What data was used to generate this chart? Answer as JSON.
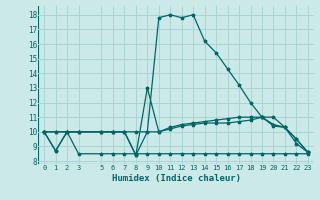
{
  "xlabel": "Humidex (Indice chaleur)",
  "background_color": "#cce9e9",
  "grid_color": "#add4d4",
  "line_color": "#006666",
  "x_ticks": [
    0,
    1,
    2,
    3,
    5,
    6,
    7,
    8,
    9,
    10,
    11,
    12,
    13,
    14,
    15,
    16,
    17,
    18,
    19,
    20,
    21,
    22,
    23
  ],
  "y_ticks": [
    8,
    9,
    10,
    11,
    12,
    13,
    14,
    15,
    16,
    17,
    18
  ],
  "ylim": [
    7.8,
    18.6
  ],
  "xlim": [
    -0.5,
    23.5
  ],
  "series": [
    {
      "x": [
        0,
        1,
        2,
        3,
        5,
        6,
        7,
        8,
        9,
        10,
        11,
        12,
        13,
        14,
        15,
        16,
        17,
        18,
        19,
        20,
        21,
        22,
        23
      ],
      "y": [
        10,
        8.7,
        10,
        10,
        10,
        10,
        10,
        8.4,
        10,
        17.8,
        18,
        17.8,
        18,
        16.2,
        15.4,
        14.3,
        13.2,
        12,
        11,
        10.4,
        10.3,
        9.5,
        8.6
      ]
    },
    {
      "x": [
        0,
        1,
        2,
        3,
        5,
        6,
        7,
        8,
        9,
        10,
        11,
        12,
        13,
        14,
        15,
        16,
        17,
        18,
        19,
        20,
        21,
        22,
        23
      ],
      "y": [
        10,
        8.7,
        10,
        10,
        10,
        10,
        10,
        8.4,
        13,
        10,
        10.2,
        10.4,
        10.5,
        10.6,
        10.6,
        10.6,
        10.7,
        10.8,
        11,
        11,
        10.3,
        9.5,
        8.6
      ]
    },
    {
      "x": [
        0,
        1,
        2,
        3,
        5,
        6,
        7,
        8,
        9,
        10,
        11,
        12,
        13,
        14,
        15,
        16,
        17,
        18,
        19,
        20,
        21,
        22,
        23
      ],
      "y": [
        10,
        10,
        10,
        8.5,
        8.5,
        8.5,
        8.5,
        8.5,
        8.5,
        8.5,
        8.5,
        8.5,
        8.5,
        8.5,
        8.5,
        8.5,
        8.5,
        8.5,
        8.5,
        8.5,
        8.5,
        8.5,
        8.5
      ]
    },
    {
      "x": [
        0,
        1,
        2,
        3,
        5,
        6,
        7,
        8,
        9,
        10,
        11,
        12,
        13,
        14,
        15,
        16,
        17,
        18,
        19,
        20,
        21,
        22,
        23
      ],
      "y": [
        10,
        10,
        10,
        10,
        10,
        10,
        10,
        10,
        10,
        10,
        10.3,
        10.5,
        10.6,
        10.7,
        10.8,
        10.9,
        11,
        11,
        11,
        10.5,
        10.3,
        9.2,
        8.6
      ]
    }
  ]
}
